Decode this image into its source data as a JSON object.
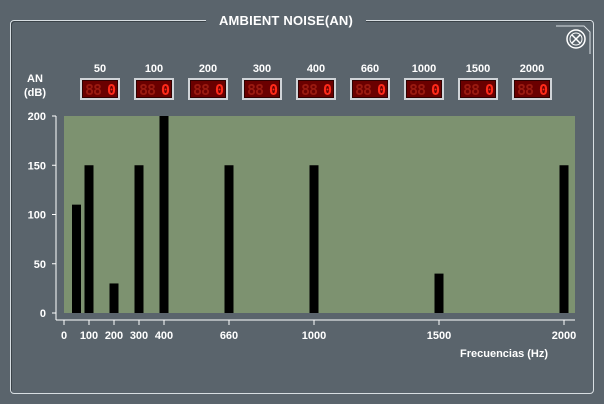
{
  "window": {
    "title": "AMBIENT NOISE(AN)"
  },
  "an_label": {
    "line1": "AN",
    "line2": "(dB)"
  },
  "bands": [
    {
      "label": "50",
      "readout": "0",
      "ghost": "88"
    },
    {
      "label": "100",
      "readout": "0",
      "ghost": "88"
    },
    {
      "label": "200",
      "readout": "0",
      "ghost": "88"
    },
    {
      "label": "300",
      "readout": "0",
      "ghost": "88"
    },
    {
      "label": "400",
      "readout": "0",
      "ghost": "88"
    },
    {
      "label": "660",
      "readout": "0",
      "ghost": "88"
    },
    {
      "label": "1000",
      "readout": "0",
      "ghost": "88"
    },
    {
      "label": "1500",
      "readout": "0",
      "ghost": "88"
    },
    {
      "label": "2000",
      "readout": "0",
      "ghost": "88"
    }
  ],
  "chart_data": {
    "type": "bar",
    "x": [
      50,
      100,
      200,
      300,
      400,
      660,
      1000,
      1500,
      2000
    ],
    "values": [
      110,
      150,
      30,
      150,
      200,
      150,
      150,
      40,
      150
    ],
    "xticks": [
      "0",
      "100",
      "200",
      "300",
      "400",
      "660",
      "1000",
      "1500",
      "2000"
    ],
    "xtick_values": [
      0,
      100,
      200,
      300,
      400,
      660,
      1000,
      1500,
      2000
    ],
    "yticks": [
      "0",
      "50",
      "100",
      "150",
      "200"
    ],
    "ylim": [
      0,
      200
    ],
    "xlabel": "Frecuencias  (Hz)",
    "ylabel": "",
    "title": "",
    "grid": false,
    "colors": {
      "plot_bg": "#7d9270",
      "bar": "#000000",
      "axis_text": "#ffffff"
    }
  }
}
